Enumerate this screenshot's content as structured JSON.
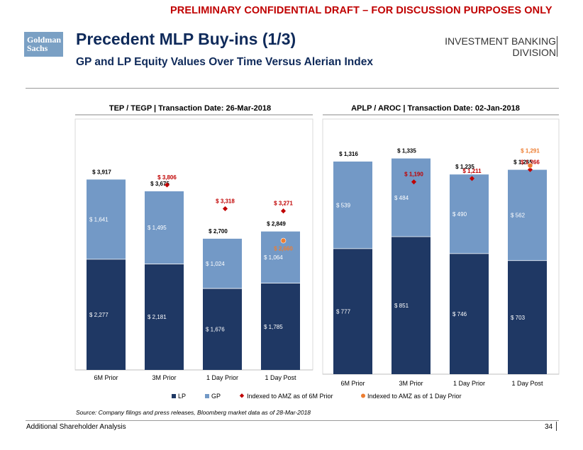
{
  "header": {
    "banner": "PRELIMINARY CONFIDENTIAL DRAFT – FOR DISCUSSION PURPOSES ONLY",
    "logo_line1": "Goldman",
    "logo_line2": "Sachs",
    "title": "Precedent MLP Buy-ins (1/3)",
    "subtitle": "GP and LP Equity Values Over Time Versus Alerian Index",
    "division_line1": "INVESTMENT BANKING",
    "division_line2": "DIVISION"
  },
  "colors": {
    "lp": "#1f3864",
    "gp": "#7399c6",
    "amz_6m": "#c00000",
    "amz_1d": "#ed7d31",
    "title": "#0f2a5a"
  },
  "chart_data": [
    {
      "type": "bar",
      "stacked": true,
      "title": "TEP / TEGP | Transaction Date: 26-Mar-2018",
      "categories": [
        "6M Prior",
        "3M Prior",
        "1 Day Prior",
        "1 Day Post"
      ],
      "series": [
        {
          "name": "LP",
          "values": [
            2277,
            2181,
            1676,
            1785
          ],
          "labels": [
            "$ 2,277",
            "$ 2,181",
            "$ 1,676",
            "$ 1,785"
          ]
        },
        {
          "name": "GP",
          "values": [
            1641,
            1495,
            1024,
            1064
          ],
          "labels": [
            "$ 1,641",
            "$ 1,495",
            "$ 1,024",
            "$ 1,064"
          ]
        }
      ],
      "totals": [
        3917,
        3675,
        2700,
        2849
      ],
      "total_labels": [
        "$ 3,917",
        "$ 3,675",
        "$ 2,700",
        "$ 2,849"
      ],
      "indexed_6m": [
        null,
        3806,
        3318,
        3271
      ],
      "indexed_6m_labels": [
        "",
        "$ 3,806",
        "$ 3,318",
        "$ 3,271"
      ],
      "indexed_1d": [
        null,
        null,
        null,
        2660
      ],
      "indexed_1d_labels": [
        "",
        "",
        "",
        "$ 2,660"
      ],
      "ylim": [
        0,
        4900
      ]
    },
    {
      "type": "bar",
      "stacked": true,
      "title": "APLP / AROC | Transaction Date: 02-Jan-2018",
      "categories": [
        "6M Prior",
        "3M Prior",
        "1 Day Prior",
        "1 Day Post"
      ],
      "series": [
        {
          "name": "LP",
          "values": [
            777,
            851,
            746,
            703
          ],
          "labels": [
            "$ 777",
            "$ 851",
            "$ 746",
            "$ 703"
          ]
        },
        {
          "name": "GP",
          "values": [
            539,
            484,
            490,
            562
          ],
          "labels": [
            "$ 539",
            "$ 484",
            "$ 490",
            "$ 562"
          ]
        }
      ],
      "totals": [
        1316,
        1335,
        1235,
        1265
      ],
      "total_labels": [
        "$ 1,316",
        "$ 1,335",
        "$ 1,235",
        "$ 1,265"
      ],
      "indexed_6m": [
        null,
        1190,
        1211,
        1266
      ],
      "indexed_6m_labels": [
        "",
        "$ 1,190",
        "$ 1,211",
        "$ 1,266"
      ],
      "indexed_1d": [
        null,
        null,
        null,
        1291
      ],
      "indexed_1d_labels": [
        "",
        "",
        "",
        "$ 1,291"
      ],
      "ylim": [
        0,
        1500
      ]
    }
  ],
  "legend": {
    "lp": "LP",
    "gp": "GP",
    "amz_6m": "Indexed to AMZ as of 6M Prior",
    "amz_1d": "Indexed to AMZ as of 1 Day Prior"
  },
  "footer": {
    "source": "Source: Company filings and press releases, Bloomberg market data as of 28-Mar-2018",
    "left": "Additional Shareholder Analysis",
    "page": "34"
  }
}
